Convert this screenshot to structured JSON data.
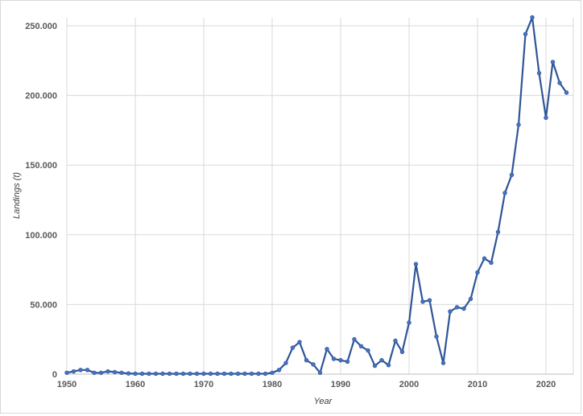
{
  "chart_data": {
    "type": "line",
    "title": "",
    "xlabel": "Year",
    "ylabel": "Landings (t)",
    "xlim": [
      1950,
      2024
    ],
    "ylim": [
      0,
      250000
    ],
    "x_ticks": [
      1950,
      1960,
      1970,
      1980,
      1990,
      2000,
      2010,
      2020
    ],
    "x_tick_labels": [
      "1950",
      "1960",
      "1970",
      "1980",
      "1990",
      "2000",
      "2010",
      "2020"
    ],
    "y_ticks": [
      0,
      50000,
      100000,
      150000,
      200000,
      250000
    ],
    "y_tick_labels": [
      "0",
      "50.000",
      "100.000",
      "150.000",
      "200.000",
      "250.000"
    ],
    "grid": true,
    "legend": "none",
    "colors": {
      "line": "#2f5597",
      "marker": "#4472c4",
      "grid": "#d9d9d9",
      "axis": "#bfbfbf"
    },
    "series": [
      {
        "x": [
          1950,
          1951,
          1952,
          1953,
          1954,
          1955,
          1956,
          1957,
          1958,
          1959,
          1960,
          1961,
          1962,
          1963,
          1964,
          1965,
          1966,
          1967,
          1968,
          1969,
          1970,
          1971,
          1972,
          1973,
          1974,
          1975,
          1976,
          1977,
          1978,
          1979,
          1980,
          1981,
          1982,
          1983,
          1984,
          1985,
          1986,
          1987,
          1988,
          1989,
          1990,
          1991,
          1992,
          1993,
          1994,
          1995,
          1996,
          1997,
          1998,
          1999,
          2000,
          2001,
          2002,
          2003,
          2004,
          2005,
          2006,
          2007,
          2008,
          2009,
          2010,
          2011,
          2012,
          2013,
          2014,
          2015,
          2016,
          2017,
          2018,
          2019,
          2020,
          2021,
          2022,
          2023
        ],
        "y": [
          1000,
          2000,
          3000,
          3000,
          1000,
          1000,
          2000,
          1500,
          1000,
          500,
          300,
          300,
          300,
          300,
          300,
          300,
          300,
          300,
          300,
          300,
          300,
          300,
          300,
          300,
          300,
          300,
          300,
          300,
          300,
          300,
          1000,
          3000,
          8000,
          19000,
          23000,
          10000,
          7000,
          1000,
          18000,
          11000,
          10000,
          9000,
          25000,
          20000,
          17000,
          6000,
          10000,
          6500,
          24000,
          16000,
          37000,
          79000,
          52000,
          53000,
          27000,
          8000,
          45000,
          48000,
          47000,
          54000,
          73000,
          83000,
          80000,
          102000,
          130000,
          143000,
          179000,
          244000,
          256000,
          216000,
          184000,
          224000,
          209000,
          202000
        ]
      }
    ]
  }
}
